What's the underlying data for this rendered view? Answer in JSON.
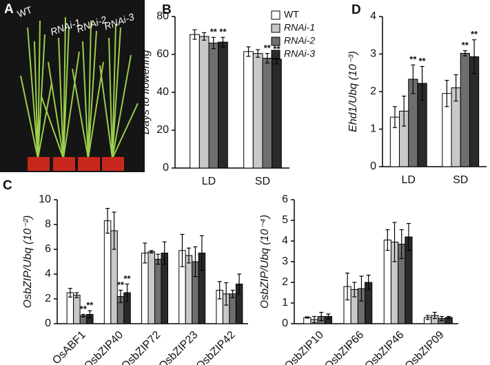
{
  "photo": {
    "panel": "A",
    "labels": [
      "WT",
      "RNAi-1",
      "RNAi-2",
      "RNAi-3"
    ]
  },
  "chart_data": [
    {
      "type": "bar",
      "panel": "B",
      "ylabel": "Days to flowering",
      "categories": [
        "LD",
        "SD"
      ],
      "ylim": [
        0,
        80
      ],
      "yticks": [
        0,
        20,
        40,
        60,
        80
      ],
      "legend": true,
      "series": [
        {
          "name": "WT",
          "color": "#ffffff",
          "values": [
            70.5,
            61.5
          ],
          "errors": [
            2.5,
            2.5
          ]
        },
        {
          "name": "RNAi-1",
          "color": "#c8c8c8",
          "values": [
            69.5,
            60.5
          ],
          "errors": [
            2,
            2
          ]
        },
        {
          "name": "RNAi-2",
          "color": "#6e6e6e",
          "values": [
            66,
            58
          ],
          "errors": [
            3,
            2.5
          ],
          "significance": [
            "**",
            "**"
          ]
        },
        {
          "name": "RNAi-3",
          "color": "#2a2a2a",
          "values": [
            66.5,
            57.5
          ],
          "errors": [
            2.5,
            2.5
          ],
          "significance": [
            "**",
            "**"
          ]
        }
      ]
    },
    {
      "type": "bar",
      "panel": "D",
      "ylabel": "Ehd1/Ubq (10⁻³)",
      "categories": [
        "LD",
        "SD"
      ],
      "ylim": [
        0,
        4
      ],
      "yticks": [
        0,
        1,
        2,
        3,
        4
      ],
      "series": [
        {
          "name": "WT",
          "color": "#ffffff",
          "values": [
            1.32,
            1.95
          ],
          "errors": [
            0.28,
            0.35
          ]
        },
        {
          "name": "RNAi-1",
          "color": "#c8c8c8",
          "values": [
            1.48,
            2.1
          ],
          "errors": [
            0.4,
            0.35
          ]
        },
        {
          "name": "RNAi-2",
          "color": "#6e6e6e",
          "values": [
            2.33,
            3.02
          ],
          "errors": [
            0.38,
            0.07
          ],
          "significance": [
            "**",
            "**"
          ]
        },
        {
          "name": "RNAi-3",
          "color": "#2a2a2a",
          "values": [
            2.22,
            2.93
          ],
          "errors": [
            0.45,
            0.45
          ],
          "significance": [
            "**",
            "**"
          ]
        }
      ]
    },
    {
      "type": "bar",
      "panel": "C",
      "ylabel": "OsbZIP/Ubq (10⁻²)",
      "categories": [
        "OsABF1",
        "OsbZIP40",
        "OsbZIP72",
        "OsbZIP23",
        "OsbZIP42"
      ],
      "ylim": [
        0,
        10
      ],
      "yticks": [
        0,
        2,
        4,
        6,
        8,
        10
      ],
      "series": [
        {
          "name": "WT",
          "color": "#ffffff",
          "values": [
            2.5,
            8.3,
            5.7,
            5.9,
            2.7
          ],
          "errors": [
            0.35,
            1.0,
            0.8,
            1.3,
            0.7
          ]
        },
        {
          "name": "RNAi-1",
          "color": "#c8c8c8",
          "values": [
            2.3,
            7.5,
            5.8,
            5.5,
            2.4
          ],
          "errors": [
            0.2,
            1.5,
            0.1,
            0.6,
            0.9
          ]
        },
        {
          "name": "RNAi-2",
          "color": "#6e6e6e",
          "values": [
            0.65,
            2.2,
            5.2,
            5.0,
            2.4
          ],
          "errors": [
            0.1,
            0.5,
            0.4,
            1.2,
            0.3
          ],
          "significance": [
            "**",
            "**",
            null,
            null,
            null
          ]
        },
        {
          "name": "RNAi-3",
          "color": "#2a2a2a",
          "values": [
            0.75,
            2.5,
            5.7,
            5.7,
            3.2
          ],
          "errors": [
            0.3,
            0.7,
            0.9,
            1.4,
            0.8
          ],
          "significance": [
            "**",
            "**",
            null,
            null,
            null
          ]
        }
      ]
    },
    {
      "type": "bar",
      "ylabel": "OsbZIP/Ubq (10⁻⁴)",
      "categories": [
        "OsbZIP10",
        "OsbZIP66",
        "OsbZIP46",
        "OsbZIP09"
      ],
      "ylim": [
        0,
        6
      ],
      "yticks": [
        0,
        1,
        2,
        3,
        4,
        5,
        6
      ],
      "series": [
        {
          "name": "WT",
          "color": "#ffffff",
          "values": [
            0.3,
            1.8,
            4.05,
            0.3
          ],
          "errors": [
            0.03,
            0.65,
            0.5,
            0.1
          ]
        },
        {
          "name": "RNAi-1",
          "color": "#c8c8c8",
          "values": [
            0.2,
            1.65,
            3.95,
            0.4
          ],
          "errors": [
            0.15,
            0.35,
            0.95,
            0.15
          ]
        },
        {
          "name": "RNAi-2",
          "color": "#6e6e6e",
          "values": [
            0.35,
            1.7,
            3.85,
            0.25
          ],
          "errors": [
            0.2,
            0.6,
            0.7,
            0.1
          ]
        },
        {
          "name": "RNAi-3",
          "color": "#2a2a2a",
          "values": [
            0.35,
            2.0,
            4.2,
            0.3
          ],
          "errors": [
            0.12,
            0.35,
            0.65,
            0.05
          ]
        }
      ]
    }
  ]
}
